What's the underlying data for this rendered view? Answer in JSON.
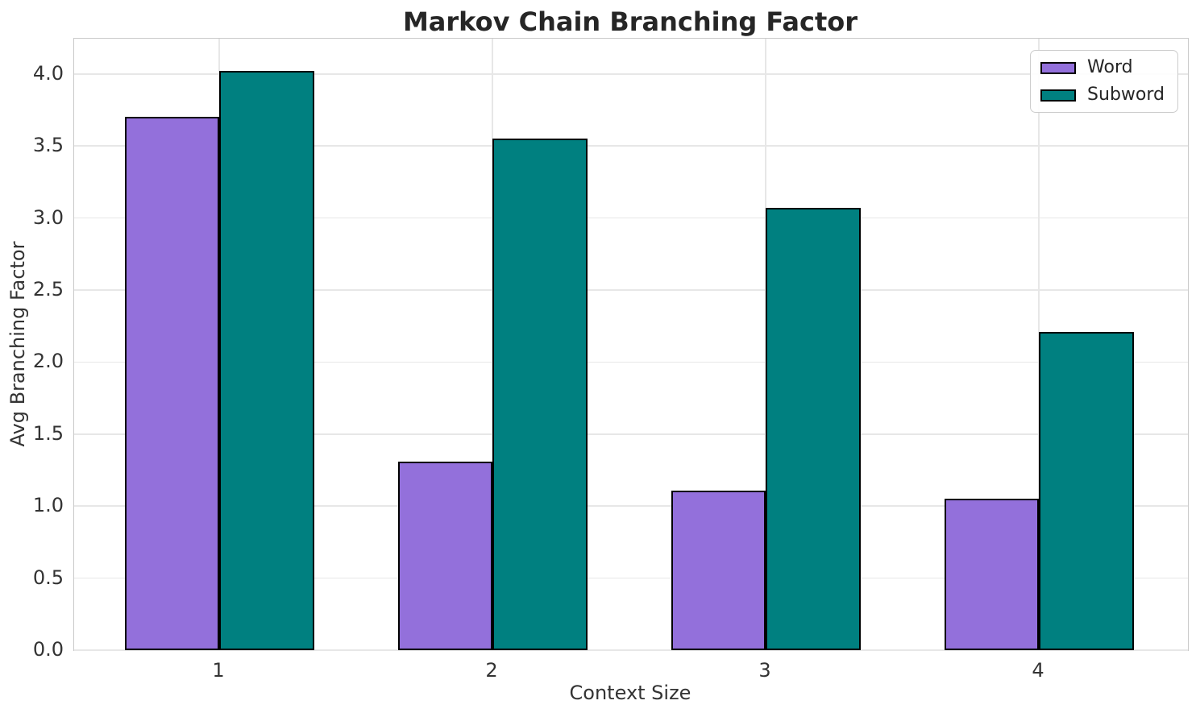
{
  "chart_data": {
    "type": "bar",
    "title": "Markov Chain Branching Factor",
    "xlabel": "Context Size",
    "ylabel": "Avg Branching Factor",
    "categories": [
      "1",
      "2",
      "3",
      "4"
    ],
    "series": [
      {
        "name": "Word",
        "color": "#9370DB",
        "values": [
          3.7,
          1.31,
          1.11,
          1.05
        ]
      },
      {
        "name": "Subword",
        "color": "#008080",
        "values": [
          4.02,
          3.55,
          3.07,
          2.21
        ]
      }
    ],
    "yticks": {
      "values": [
        0.0,
        0.5,
        1.0,
        1.5,
        2.0,
        2.5,
        3.0,
        3.5,
        4.0
      ],
      "labels": [
        "0.0",
        "0.5",
        "1.0",
        "1.5",
        "2.0",
        "2.5",
        "3.0",
        "3.5",
        "4.0"
      ]
    },
    "ylim": [
      0,
      4.245
    ],
    "grid": true,
    "legend_position": "upper right",
    "bar_edge_color": "#000000",
    "colors": {
      "grid": "#e7e7e7",
      "spine": "#c9c9c9",
      "text": "#333333",
      "title_text": "#262626"
    }
  }
}
